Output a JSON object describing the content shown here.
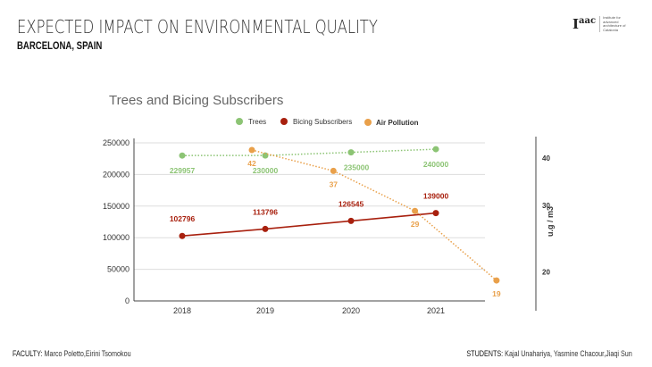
{
  "header": {
    "title": "EXPECTED IMPACT ON ENVIRONMENTAL QUALITY",
    "subtitle": "BARCELONA, SPAIN",
    "logo_text": "Iaac",
    "logo_caption": "Institute for advanced architecture of Catalonia"
  },
  "footer": {
    "faculty_label": "FACULTY:",
    "faculty": "Marco Poletto,Eirini Tsomokou",
    "students_label": "STUDENTS:",
    "students": "Kajal Unahariya, Yasmine Chacour,Jiaqi Sun"
  },
  "chart_data": {
    "type": "line",
    "title": "Trees and Bicing Subscribers",
    "categories": [
      "2018",
      "2019",
      "2020",
      "2021"
    ],
    "series": [
      {
        "name": "Trees",
        "color": "#8cc474",
        "style": "dotted",
        "values": [
          229957,
          230000,
          235000,
          240000
        ],
        "labels": [
          "229957",
          "230000",
          "235000",
          "240000"
        ],
        "axis": "left"
      },
      {
        "name": "Bicing Subscribers",
        "color": "#a8200e",
        "style": "solid",
        "values": [
          102796,
          113796,
          126545,
          139000
        ],
        "labels": [
          "102796",
          "113796",
          "126545",
          "139000"
        ],
        "axis": "left"
      },
      {
        "name": "Air Pollution",
        "color": "#e9a04a",
        "style": "dotted",
        "values": [
          42,
          37,
          29,
          19
        ],
        "labels": [
          "42",
          "37",
          "29",
          "19"
        ],
        "axis": "right"
      }
    ],
    "ylim": [
      0,
      250000
    ],
    "yticks": [
      "0",
      "50000",
      "100000",
      "150000",
      "200000",
      "250000"
    ],
    "y2label": "u.g / m3",
    "y2scale": "log",
    "y2ticks": [
      "20",
      "30",
      "40"
    ],
    "grid": true,
    "legend": "top"
  }
}
